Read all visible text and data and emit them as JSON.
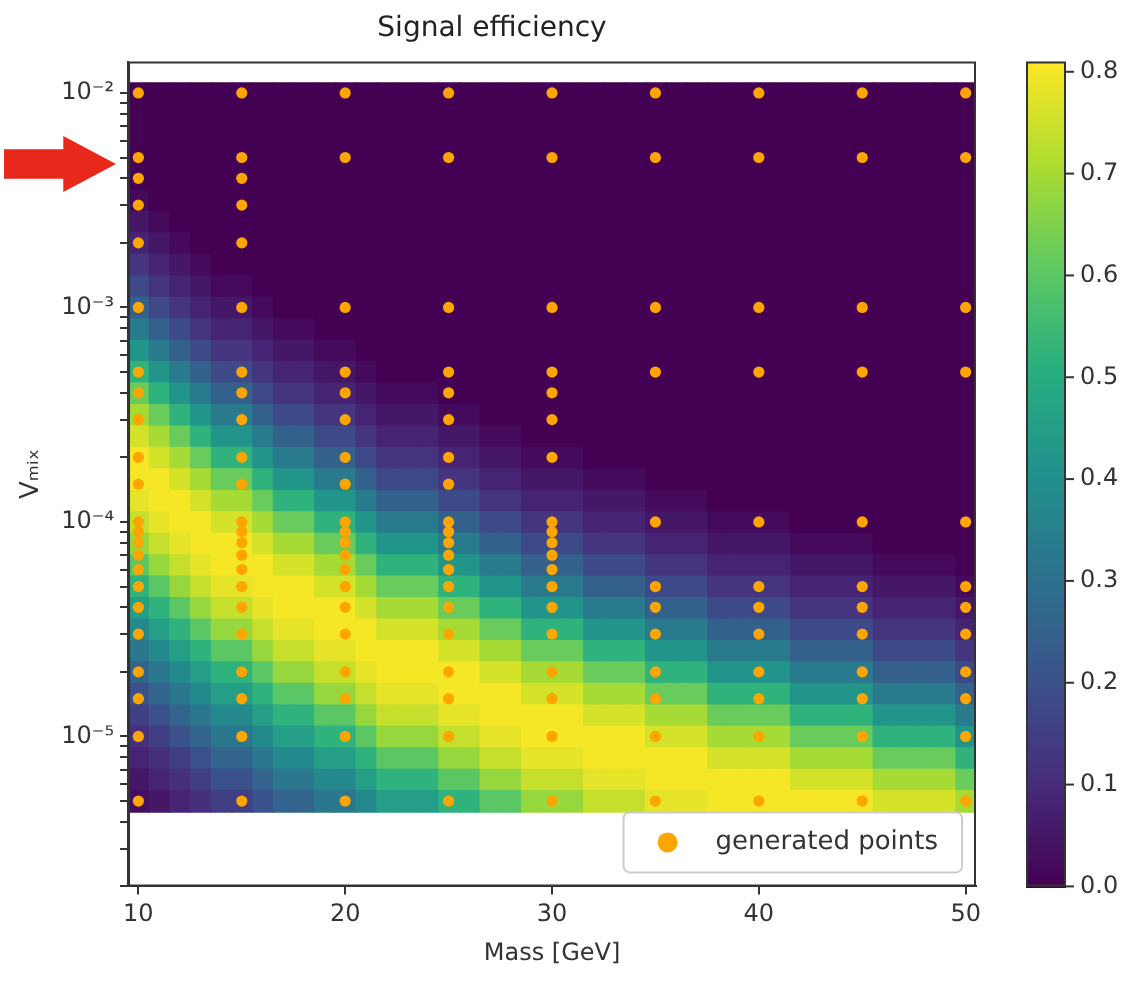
{
  "chart_data": {
    "type": "heatmap",
    "title": "Signal efficiency",
    "xlabel": "Mass [GeV]",
    "ylabel": "Vₘᵢₓ",
    "xlim": [
      9.5,
      50.5
    ],
    "xticks": [
      10,
      20,
      30,
      40,
      50
    ],
    "ylim": [
      2e-06,
      0.014
    ],
    "log": "y",
    "yticks": [
      {
        "value": 2e-06,
        "label": null
      },
      {
        "value": 3e-06,
        "label": null
      },
      {
        "value": 4e-06,
        "label": null
      },
      {
        "value": 5e-06,
        "label": null
      },
      {
        "value": 6e-06,
        "label": null
      },
      {
        "value": 7e-06,
        "label": null
      },
      {
        "value": 8e-06,
        "label": null
      },
      {
        "value": 9e-06,
        "label": null
      },
      {
        "value": 1e-05,
        "label": "10⁻⁵"
      },
      {
        "value": 2e-05,
        "label": null
      },
      {
        "value": 3e-05,
        "label": null
      },
      {
        "value": 4e-05,
        "label": null
      },
      {
        "value": 5e-05,
        "label": null
      },
      {
        "value": 6e-05,
        "label": null
      },
      {
        "value": 7e-05,
        "label": null
      },
      {
        "value": 8e-05,
        "label": null
      },
      {
        "value": 9e-05,
        "label": null
      },
      {
        "value": 0.0001,
        "label": "10⁻⁴"
      },
      {
        "value": 0.0002,
        "label": null
      },
      {
        "value": 0.0003,
        "label": null
      },
      {
        "value": 0.0004,
        "label": null
      },
      {
        "value": 0.0005,
        "label": null
      },
      {
        "value": 0.0006,
        "label": null
      },
      {
        "value": 0.0007,
        "label": null
      },
      {
        "value": 0.0008,
        "label": null
      },
      {
        "value": 0.0009,
        "label": null
      },
      {
        "value": 0.001,
        "label": "10⁻³"
      },
      {
        "value": 0.002,
        "label": null
      },
      {
        "value": 0.003,
        "label": null
      },
      {
        "value": 0.004,
        "label": null
      },
      {
        "value": 0.005,
        "label": null
      },
      {
        "value": 0.006,
        "label": null
      },
      {
        "value": 0.007,
        "label": null
      },
      {
        "value": 0.008,
        "label": null
      },
      {
        "value": 0.009,
        "label": null
      },
      {
        "value": 0.01,
        "label": "10⁻²"
      }
    ],
    "grid": false,
    "legend": "bottom right",
    "marker": "circle",
    "clim": [
      0,
      0.81
    ],
    "cticks": [
      {
        "value": 0,
        "label": "0.0"
      },
      0.1,
      0.2,
      0.3,
      0.4,
      0.5,
      0.6,
      0.7,
      0.8
    ],
    "x": [
      10,
      11,
      12,
      13,
      14,
      15,
      16,
      17,
      18,
      19,
      20,
      21,
      22,
      23,
      24,
      25,
      26,
      27,
      28,
      29,
      30,
      31,
      32,
      33,
      34,
      35,
      36,
      37,
      38,
      39,
      40,
      41,
      42,
      43,
      44,
      45,
      46,
      47,
      48,
      49,
      50
    ],
    "y": [
      0.01,
      0.00794,
      0.00631,
      0.00501,
      0.00398,
      0.00316,
      0.00251,
      0.002,
      0.00158,
      0.00126,
      0.001,
      0.000794,
      0.000631,
      0.000501,
      0.000398,
      0.000316,
      0.000251,
      0.0002,
      0.000158,
      0.000126,
      0.0001,
      7.94e-05,
      6.31e-05,
      5.01e-05,
      3.98e-05,
      3.16e-05,
      2.51e-05,
      2e-05,
      1.58e-05,
      1.26e-05,
      1e-05,
      7.94e-06,
      6.31e-06,
      5.01e-06
    ],
    "cells": [
      [
        0,
        0,
        0,
        0,
        0,
        0,
        0,
        0,
        0,
        0,
        0,
        0,
        0,
        0,
        0,
        0,
        0,
        0,
        0,
        0,
        0,
        0,
        0,
        0,
        0,
        0,
        0,
        0,
        0,
        0,
        0,
        0,
        0,
        0,
        0,
        0,
        0,
        0,
        0,
        0,
        0
      ],
      [
        0,
        0,
        0,
        0,
        0,
        0,
        0,
        0,
        0,
        0,
        0,
        0,
        0,
        0,
        0,
        0,
        0,
        0,
        0,
        0,
        0,
        0,
        0,
        0,
        0,
        0,
        0,
        0,
        0,
        0,
        0,
        0,
        0,
        0,
        0,
        0,
        0,
        0,
        0,
        0,
        0
      ],
      [
        0,
        0,
        0,
        0,
        0,
        0,
        0,
        0,
        0,
        0,
        0,
        0,
        0,
        0,
        0,
        0,
        0,
        0,
        0,
        0,
        0,
        0,
        0,
        0,
        0,
        0,
        0,
        0,
        0,
        0,
        0,
        0,
        0,
        0,
        0,
        0,
        0,
        0,
        0,
        0,
        0
      ],
      [
        0,
        0,
        0,
        0,
        0,
        0,
        0,
        0,
        0,
        0,
        0,
        0,
        0,
        0,
        0,
        0,
        0,
        0,
        0,
        0,
        0,
        0,
        0,
        0,
        0,
        0,
        0,
        0,
        0,
        0,
        0,
        0,
        0,
        0,
        0,
        0,
        0,
        0,
        0,
        0,
        0
      ],
      [
        0,
        0,
        0,
        0,
        0,
        0,
        0,
        0,
        0,
        0,
        0,
        0,
        0,
        0,
        0,
        0,
        0,
        0,
        0,
        0,
        0,
        0,
        0,
        0,
        0,
        0,
        0,
        0,
        0,
        0,
        0,
        0,
        0,
        0,
        0,
        0,
        0,
        0,
        0,
        0,
        0
      ],
      [
        0.02,
        0,
        0,
        0,
        0,
        0,
        0,
        0,
        0,
        0,
        0,
        0,
        0,
        0,
        0,
        0,
        0,
        0,
        0,
        0,
        0,
        0,
        0,
        0,
        0,
        0,
        0,
        0,
        0,
        0,
        0,
        0,
        0,
        0,
        0,
        0,
        0,
        0,
        0,
        0,
        0
      ],
      [
        0.05,
        0.02,
        0,
        0,
        0,
        0,
        0,
        0,
        0,
        0,
        0,
        0,
        0,
        0,
        0,
        0,
        0,
        0,
        0,
        0,
        0,
        0,
        0,
        0,
        0,
        0,
        0,
        0,
        0,
        0,
        0,
        0,
        0,
        0,
        0,
        0,
        0,
        0,
        0,
        0,
        0
      ],
      [
        0.08,
        0.05,
        0.02,
        0,
        0,
        0,
        0,
        0,
        0,
        0,
        0,
        0,
        0,
        0,
        0,
        0,
        0,
        0,
        0,
        0,
        0,
        0,
        0,
        0,
        0,
        0,
        0,
        0,
        0,
        0,
        0,
        0,
        0,
        0,
        0,
        0,
        0,
        0,
        0,
        0,
        0
      ],
      [
        0.12,
        0.08,
        0.05,
        0.02,
        0,
        0,
        0,
        0,
        0,
        0,
        0,
        0,
        0,
        0,
        0,
        0,
        0,
        0,
        0,
        0,
        0,
        0,
        0,
        0,
        0,
        0,
        0,
        0,
        0,
        0,
        0,
        0,
        0,
        0,
        0,
        0,
        0,
        0,
        0,
        0,
        0
      ],
      [
        0.18,
        0.12,
        0.08,
        0.05,
        0.02,
        0.02,
        0,
        0,
        0,
        0,
        0,
        0,
        0,
        0,
        0,
        0,
        0,
        0,
        0,
        0,
        0,
        0,
        0,
        0,
        0,
        0,
        0,
        0,
        0,
        0,
        0,
        0,
        0,
        0,
        0,
        0,
        0,
        0,
        0,
        0,
        0
      ],
      [
        0.25,
        0.18,
        0.12,
        0.08,
        0.05,
        0.05,
        0.02,
        0,
        0,
        0,
        0,
        0,
        0,
        0,
        0,
        0,
        0,
        0,
        0,
        0,
        0,
        0,
        0,
        0,
        0,
        0,
        0,
        0,
        0,
        0,
        0,
        0,
        0,
        0,
        0,
        0,
        0,
        0,
        0,
        0,
        0
      ],
      [
        0.33,
        0.25,
        0.18,
        0.12,
        0.08,
        0.08,
        0.05,
        0.02,
        0.02,
        0,
        0,
        0,
        0,
        0,
        0,
        0,
        0,
        0,
        0,
        0,
        0,
        0,
        0,
        0,
        0,
        0,
        0,
        0,
        0,
        0,
        0,
        0,
        0,
        0,
        0,
        0,
        0,
        0,
        0,
        0,
        0
      ],
      [
        0.42,
        0.33,
        0.25,
        0.18,
        0.12,
        0.12,
        0.08,
        0.05,
        0.05,
        0.02,
        0.02,
        0,
        0,
        0,
        0,
        0,
        0,
        0,
        0,
        0,
        0,
        0,
        0,
        0,
        0,
        0,
        0,
        0,
        0,
        0,
        0,
        0,
        0,
        0,
        0,
        0,
        0,
        0,
        0,
        0,
        0
      ],
      [
        0.52,
        0.42,
        0.33,
        0.25,
        0.18,
        0.18,
        0.12,
        0.08,
        0.08,
        0.05,
        0.05,
        0.02,
        0,
        0,
        0,
        0,
        0,
        0,
        0,
        0,
        0,
        0,
        0,
        0,
        0,
        0,
        0,
        0,
        0,
        0,
        0,
        0,
        0,
        0,
        0,
        0,
        0,
        0,
        0,
        0,
        0
      ],
      [
        0.62,
        0.52,
        0.42,
        0.33,
        0.25,
        0.25,
        0.18,
        0.12,
        0.12,
        0.08,
        0.08,
        0.05,
        0.02,
        0.02,
        0.02,
        0,
        0,
        0,
        0,
        0,
        0,
        0,
        0,
        0,
        0,
        0,
        0,
        0,
        0,
        0,
        0,
        0,
        0,
        0,
        0,
        0,
        0,
        0,
        0,
        0,
        0
      ],
      [
        0.7,
        0.62,
        0.52,
        0.42,
        0.33,
        0.33,
        0.25,
        0.18,
        0.18,
        0.12,
        0.12,
        0.08,
        0.05,
        0.05,
        0.05,
        0.02,
        0.02,
        0,
        0,
        0,
        0,
        0,
        0,
        0,
        0,
        0,
        0,
        0,
        0,
        0,
        0,
        0,
        0,
        0,
        0,
        0,
        0,
        0,
        0,
        0,
        0
      ],
      [
        0.76,
        0.7,
        0.62,
        0.52,
        0.42,
        0.42,
        0.33,
        0.25,
        0.25,
        0.18,
        0.18,
        0.12,
        0.08,
        0.08,
        0.08,
        0.05,
        0.05,
        0.02,
        0.02,
        0,
        0,
        0,
        0,
        0,
        0,
        0,
        0,
        0,
        0,
        0,
        0,
        0,
        0,
        0,
        0,
        0,
        0,
        0,
        0,
        0,
        0
      ],
      [
        0.8,
        0.76,
        0.7,
        0.62,
        0.52,
        0.52,
        0.42,
        0.33,
        0.33,
        0.25,
        0.25,
        0.18,
        0.12,
        0.12,
        0.12,
        0.08,
        0.08,
        0.05,
        0.05,
        0.02,
        0.02,
        0.02,
        0,
        0,
        0,
        0,
        0,
        0,
        0,
        0,
        0,
        0,
        0,
        0,
        0,
        0,
        0,
        0,
        0,
        0,
        0
      ],
      [
        0.8,
        0.8,
        0.76,
        0.7,
        0.62,
        0.62,
        0.52,
        0.42,
        0.42,
        0.33,
        0.33,
        0.25,
        0.18,
        0.18,
        0.18,
        0.12,
        0.12,
        0.08,
        0.08,
        0.05,
        0.05,
        0.05,
        0.02,
        0.02,
        0.02,
        0,
        0,
        0,
        0,
        0,
        0,
        0,
        0,
        0,
        0,
        0,
        0,
        0,
        0,
        0,
        0
      ],
      [
        0.78,
        0.8,
        0.8,
        0.76,
        0.7,
        0.7,
        0.62,
        0.52,
        0.52,
        0.42,
        0.42,
        0.33,
        0.25,
        0.25,
        0.25,
        0.18,
        0.18,
        0.12,
        0.12,
        0.08,
        0.08,
        0.08,
        0.05,
        0.05,
        0.05,
        0.02,
        0.02,
        0.02,
        0,
        0,
        0,
        0,
        0,
        0,
        0,
        0,
        0,
        0,
        0,
        0,
        0
      ],
      [
        0.74,
        0.78,
        0.8,
        0.8,
        0.76,
        0.76,
        0.7,
        0.62,
        0.62,
        0.52,
        0.52,
        0.42,
        0.33,
        0.33,
        0.33,
        0.25,
        0.25,
        0.18,
        0.18,
        0.12,
        0.12,
        0.12,
        0.08,
        0.08,
        0.08,
        0.05,
        0.05,
        0.05,
        0.02,
        0.02,
        0.02,
        0.02,
        0,
        0,
        0,
        0,
        0,
        0,
        0,
        0,
        0
      ],
      [
        0.68,
        0.74,
        0.78,
        0.8,
        0.8,
        0.8,
        0.76,
        0.7,
        0.7,
        0.62,
        0.62,
        0.52,
        0.42,
        0.42,
        0.42,
        0.33,
        0.33,
        0.25,
        0.25,
        0.18,
        0.18,
        0.18,
        0.12,
        0.12,
        0.12,
        0.08,
        0.08,
        0.08,
        0.05,
        0.05,
        0.05,
        0.05,
        0.02,
        0.02,
        0.02,
        0.02,
        0,
        0,
        0,
        0,
        0
      ],
      [
        0.6,
        0.68,
        0.74,
        0.78,
        0.8,
        0.8,
        0.8,
        0.76,
        0.76,
        0.7,
        0.7,
        0.62,
        0.52,
        0.52,
        0.52,
        0.42,
        0.42,
        0.33,
        0.33,
        0.25,
        0.25,
        0.25,
        0.18,
        0.18,
        0.18,
        0.12,
        0.12,
        0.12,
        0.08,
        0.08,
        0.08,
        0.08,
        0.05,
        0.05,
        0.05,
        0.05,
        0.02,
        0.02,
        0.02,
        0.02,
        0
      ],
      [
        0.52,
        0.6,
        0.68,
        0.74,
        0.78,
        0.78,
        0.8,
        0.8,
        0.8,
        0.76,
        0.76,
        0.7,
        0.62,
        0.62,
        0.62,
        0.52,
        0.52,
        0.42,
        0.42,
        0.33,
        0.33,
        0.33,
        0.25,
        0.25,
        0.25,
        0.18,
        0.18,
        0.18,
        0.12,
        0.12,
        0.12,
        0.12,
        0.08,
        0.08,
        0.08,
        0.08,
        0.05,
        0.05,
        0.05,
        0.05,
        0.02
      ],
      [
        0.45,
        0.52,
        0.6,
        0.68,
        0.74,
        0.74,
        0.78,
        0.8,
        0.8,
        0.8,
        0.8,
        0.76,
        0.7,
        0.7,
        0.7,
        0.62,
        0.62,
        0.52,
        0.52,
        0.42,
        0.42,
        0.42,
        0.33,
        0.33,
        0.33,
        0.25,
        0.25,
        0.25,
        0.18,
        0.18,
        0.18,
        0.18,
        0.12,
        0.12,
        0.12,
        0.12,
        0.08,
        0.08,
        0.08,
        0.08,
        0.05
      ],
      [
        0.38,
        0.45,
        0.52,
        0.6,
        0.68,
        0.68,
        0.74,
        0.78,
        0.78,
        0.8,
        0.8,
        0.8,
        0.76,
        0.76,
        0.76,
        0.7,
        0.7,
        0.62,
        0.62,
        0.52,
        0.52,
        0.52,
        0.42,
        0.42,
        0.42,
        0.33,
        0.33,
        0.33,
        0.25,
        0.25,
        0.25,
        0.25,
        0.18,
        0.18,
        0.18,
        0.18,
        0.12,
        0.12,
        0.12,
        0.12,
        0.08
      ],
      [
        0.32,
        0.38,
        0.45,
        0.52,
        0.6,
        0.6,
        0.68,
        0.74,
        0.74,
        0.78,
        0.78,
        0.8,
        0.8,
        0.8,
        0.8,
        0.76,
        0.76,
        0.7,
        0.7,
        0.62,
        0.62,
        0.62,
        0.52,
        0.52,
        0.52,
        0.42,
        0.42,
        0.42,
        0.33,
        0.33,
        0.33,
        0.33,
        0.25,
        0.25,
        0.25,
        0.25,
        0.18,
        0.18,
        0.18,
        0.18,
        0.12
      ],
      [
        0.26,
        0.32,
        0.38,
        0.45,
        0.52,
        0.52,
        0.6,
        0.68,
        0.68,
        0.74,
        0.74,
        0.78,
        0.8,
        0.8,
        0.8,
        0.8,
        0.8,
        0.76,
        0.76,
        0.7,
        0.7,
        0.7,
        0.62,
        0.62,
        0.62,
        0.52,
        0.52,
        0.52,
        0.42,
        0.42,
        0.42,
        0.42,
        0.33,
        0.33,
        0.33,
        0.33,
        0.25,
        0.25,
        0.25,
        0.25,
        0.18
      ],
      [
        0.2,
        0.26,
        0.32,
        0.38,
        0.45,
        0.45,
        0.52,
        0.6,
        0.6,
        0.68,
        0.68,
        0.74,
        0.78,
        0.78,
        0.78,
        0.8,
        0.8,
        0.8,
        0.8,
        0.76,
        0.76,
        0.76,
        0.7,
        0.7,
        0.7,
        0.62,
        0.62,
        0.62,
        0.52,
        0.52,
        0.52,
        0.52,
        0.42,
        0.42,
        0.42,
        0.42,
        0.33,
        0.33,
        0.33,
        0.33,
        0.25
      ],
      [
        0.15,
        0.2,
        0.26,
        0.32,
        0.38,
        0.38,
        0.45,
        0.52,
        0.52,
        0.6,
        0.6,
        0.68,
        0.74,
        0.74,
        0.74,
        0.78,
        0.78,
        0.8,
        0.8,
        0.8,
        0.8,
        0.8,
        0.76,
        0.76,
        0.76,
        0.7,
        0.7,
        0.7,
        0.62,
        0.62,
        0.62,
        0.62,
        0.52,
        0.52,
        0.52,
        0.52,
        0.42,
        0.42,
        0.42,
        0.42,
        0.33
      ],
      [
        0.11,
        0.15,
        0.2,
        0.26,
        0.32,
        0.32,
        0.38,
        0.45,
        0.45,
        0.52,
        0.52,
        0.6,
        0.68,
        0.68,
        0.68,
        0.74,
        0.74,
        0.78,
        0.78,
        0.8,
        0.8,
        0.8,
        0.8,
        0.8,
        0.8,
        0.76,
        0.76,
        0.76,
        0.7,
        0.7,
        0.7,
        0.7,
        0.62,
        0.62,
        0.62,
        0.62,
        0.52,
        0.52,
        0.52,
        0.52,
        0.42
      ],
      [
        0.08,
        0.11,
        0.15,
        0.2,
        0.26,
        0.26,
        0.32,
        0.38,
        0.38,
        0.45,
        0.45,
        0.52,
        0.6,
        0.6,
        0.6,
        0.68,
        0.68,
        0.74,
        0.74,
        0.78,
        0.78,
        0.78,
        0.8,
        0.8,
        0.8,
        0.8,
        0.8,
        0.8,
        0.76,
        0.76,
        0.76,
        0.76,
        0.7,
        0.7,
        0.7,
        0.7,
        0.62,
        0.62,
        0.62,
        0.62,
        0.52
      ],
      [
        0.05,
        0.08,
        0.11,
        0.15,
        0.2,
        0.2,
        0.26,
        0.32,
        0.32,
        0.38,
        0.38,
        0.45,
        0.52,
        0.52,
        0.52,
        0.6,
        0.6,
        0.68,
        0.68,
        0.74,
        0.74,
        0.74,
        0.78,
        0.78,
        0.78,
        0.8,
        0.8,
        0.8,
        0.8,
        0.8,
        0.8,
        0.8,
        0.76,
        0.76,
        0.76,
        0.76,
        0.7,
        0.7,
        0.7,
        0.7,
        0.62
      ],
      [
        0.03,
        0.05,
        0.08,
        0.11,
        0.15,
        0.15,
        0.2,
        0.26,
        0.26,
        0.32,
        0.32,
        0.38,
        0.45,
        0.45,
        0.45,
        0.52,
        0.52,
        0.6,
        0.6,
        0.68,
        0.68,
        0.68,
        0.74,
        0.74,
        0.74,
        0.78,
        0.78,
        0.78,
        0.8,
        0.8,
        0.8,
        0.8,
        0.8,
        0.8,
        0.8,
        0.8,
        0.76,
        0.76,
        0.76,
        0.76,
        0.7
      ]
    ],
    "series": [
      {
        "type": "scatter",
        "name": "generated points",
        "color": "#ffa500",
        "x": [
          10,
          10,
          10,
          10,
          10,
          10,
          10,
          10,
          10,
          10,
          10,
          10,
          10,
          10,
          10,
          10,
          10,
          10,
          10,
          10,
          10,
          10,
          10,
          15,
          15,
          15,
          15,
          15,
          15,
          15,
          15,
          15,
          15,
          15,
          15,
          15,
          15,
          15,
          15,
          15,
          15,
          15,
          15,
          15,
          15,
          15,
          20,
          20,
          20,
          20,
          20,
          20,
          20,
          20,
          20,
          20,
          20,
          20,
          20,
          20,
          20,
          20,
          20,
          20,
          20,
          20,
          25,
          25,
          25,
          25,
          25,
          25,
          25,
          25,
          25,
          25,
          25,
          25,
          25,
          25,
          25,
          25,
          25,
          25,
          25,
          25,
          30,
          30,
          30,
          30,
          30,
          30,
          30,
          30,
          30,
          30,
          30,
          30,
          30,
          30,
          30,
          30,
          30,
          30,
          30,
          35,
          35,
          35,
          35,
          35,
          35,
          35,
          35,
          35,
          35,
          35,
          35,
          40,
          40,
          40,
          40,
          40,
          40,
          40,
          40,
          40,
          40,
          40,
          40,
          45,
          45,
          45,
          45,
          45,
          45,
          45,
          45,
          45,
          45,
          45,
          45,
          50,
          50,
          50,
          50,
          50,
          50,
          50,
          50,
          50,
          50,
          50,
          50
        ],
        "values": [
          0.01,
          0.005,
          0.004,
          0.003,
          0.002,
          0.001,
          0.0005,
          0.0004,
          0.0003,
          0.0002,
          0.00015,
          0.0001,
          9e-05,
          8e-05,
          7e-05,
          6e-05,
          5e-05,
          4e-05,
          3e-05,
          2e-05,
          1.5e-05,
          1e-05,
          5e-06,
          0.01,
          0.005,
          0.004,
          0.003,
          0.002,
          0.001,
          0.0005,
          0.0004,
          0.0003,
          0.0002,
          0.00015,
          0.0001,
          9e-05,
          8e-05,
          7e-05,
          6e-05,
          5e-05,
          4e-05,
          3e-05,
          2e-05,
          1.5e-05,
          1e-05,
          5e-06,
          0.01,
          0.005,
          0.001,
          0.0005,
          0.0004,
          0.0003,
          0.0002,
          0.00015,
          0.0001,
          9e-05,
          8e-05,
          7e-05,
          6e-05,
          5e-05,
          4e-05,
          3e-05,
          2e-05,
          1.5e-05,
          1e-05,
          5e-06,
          0.01,
          0.005,
          0.001,
          0.0005,
          0.0004,
          0.0003,
          0.0002,
          0.00015,
          0.0001,
          9e-05,
          8e-05,
          7e-05,
          6e-05,
          5e-05,
          4e-05,
          3e-05,
          2e-05,
          1.5e-05,
          1e-05,
          5e-06,
          0.01,
          0.005,
          0.001,
          0.0005,
          0.0004,
          0.0003,
          0.0002,
          0.0001,
          9e-05,
          8e-05,
          7e-05,
          6e-05,
          5e-05,
          4e-05,
          3e-05,
          2e-05,
          1.5e-05,
          1e-05,
          5e-06,
          0.01,
          0.005,
          0.001,
          0.0005,
          0.0001,
          5e-05,
          4e-05,
          3e-05,
          2e-05,
          1.5e-05,
          1e-05,
          5e-06,
          0.01,
          0.005,
          0.001,
          0.0005,
          0.0001,
          5e-05,
          4e-05,
          3e-05,
          2e-05,
          1.5e-05,
          1e-05,
          5e-06,
          0.01,
          0.005,
          0.001,
          0.0005,
          0.0001,
          5e-05,
          4e-05,
          3e-05,
          2e-05,
          1.5e-05,
          1e-05,
          5e-06,
          0.01,
          0.005,
          0.001,
          0.0005,
          0.0001,
          5e-05,
          4e-05,
          3e-05,
          2e-05,
          1.5e-05,
          1e-05,
          5e-06
        ]
      }
    ]
  }
}
